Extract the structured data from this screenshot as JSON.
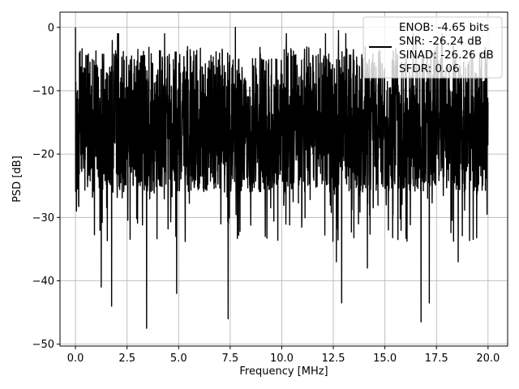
{
  "chart_data": {
    "type": "line",
    "title": "",
    "xlabel": "Frequency [MHz]",
    "ylabel": "PSD [dB]",
    "xlim": [
      -0.75,
      20.95
    ],
    "ylim": [
      -50.3,
      2.4
    ],
    "xticks": [
      0.0,
      2.5,
      5.0,
      7.5,
      10.0,
      12.5,
      15.0,
      17.5,
      20.0
    ],
    "xtick_labels": [
      "0.0",
      "2.5",
      "5.0",
      "7.5",
      "10.0",
      "12.5",
      "15.0",
      "17.5",
      "20.0"
    ],
    "yticks": [
      0,
      -10,
      -20,
      -30,
      -40,
      -50
    ],
    "ytick_labels": [
      "0",
      "−10",
      "−20",
      "−30",
      "−40",
      "−50"
    ],
    "grid": true,
    "legend_position": "top-right",
    "legend_lines": [
      "ENOB: -4.65 bits",
      "SNR: -26.24 dB",
      "SINAD: -26.26 dB",
      "SFDR: 0.06"
    ],
    "series": [
      {
        "color": "#000000",
        "x_range": [
          0.0,
          20.0
        ],
        "baseline_band": [
          -26.0,
          -3.0
        ],
        "peaks": [
          {
            "x": 0.0,
            "y": 0.0
          },
          {
            "x": 0.05,
            "y": -29.0
          },
          {
            "x": 7.75,
            "y": 0.0
          },
          {
            "x": 7.4,
            "y": -46.0
          },
          {
            "x": 12.75,
            "y": -0.5
          },
          {
            "x": 1.75,
            "y": -44.0
          },
          {
            "x": 1.25,
            "y": -41.0
          },
          {
            "x": 3.45,
            "y": -47.5
          },
          {
            "x": 4.9,
            "y": -42.0
          },
          {
            "x": 12.9,
            "y": -43.5
          },
          {
            "x": 14.15,
            "y": -38.0
          },
          {
            "x": 16.75,
            "y": -46.5
          },
          {
            "x": 17.15,
            "y": -43.5
          },
          {
            "x": 18.55,
            "y": -37.0
          },
          {
            "x": 12.65,
            "y": -37.0
          },
          {
            "x": 9.2,
            "y": -33.0
          },
          {
            "x": 19.95,
            "y": -29.5
          }
        ]
      }
    ]
  }
}
